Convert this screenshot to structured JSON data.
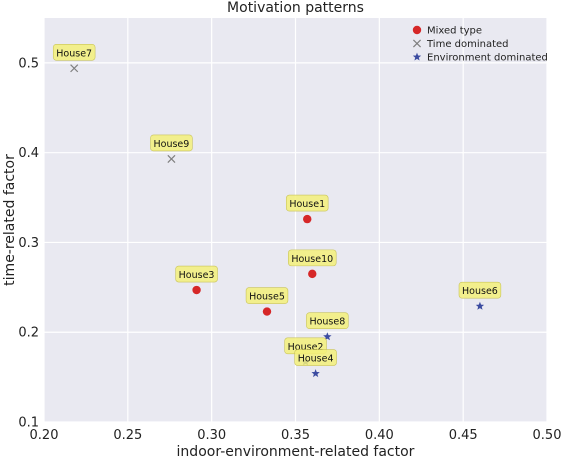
{
  "chart_data": {
    "type": "scatter",
    "title": "Motivation patterns",
    "xlabel": "indoor-environment-related factor",
    "ylabel": "time-related factor",
    "xlim": [
      0.2,
      0.5
    ],
    "ylim": [
      0.1,
      0.55
    ],
    "xticks": [
      "0.20",
      "0.25",
      "0.30",
      "0.35",
      "0.40",
      "0.45",
      "0.50"
    ],
    "yticks": [
      "0.1",
      "0.2",
      "0.3",
      "0.4",
      "0.5"
    ],
    "grid": true,
    "legend_position": "top-right",
    "colors": {
      "background": "#e9e9f1",
      "grid": "#ffffff",
      "mixed": "#d62728",
      "time": "#7f7f7f",
      "environment": "#3b4ba0",
      "label_fill": "#f3f07a",
      "label_stroke": "#c9c45a"
    },
    "series": [
      {
        "name": "Mixed type",
        "marker": "circle",
        "points": [
          {
            "label": "House1",
            "x": 0.357,
            "y": 0.326
          },
          {
            "label": "House10",
            "x": 0.36,
            "y": 0.265
          },
          {
            "label": "House3",
            "x": 0.291,
            "y": 0.247
          },
          {
            "label": "House5",
            "x": 0.333,
            "y": 0.223
          }
        ]
      },
      {
        "name": "Time dominated",
        "marker": "x",
        "points": [
          {
            "label": "House7",
            "x": 0.218,
            "y": 0.494
          },
          {
            "label": "House9",
            "x": 0.276,
            "y": 0.393
          }
        ]
      },
      {
        "name": "Environment dominated",
        "marker": "star",
        "points": [
          {
            "label": "House6",
            "x": 0.46,
            "y": 0.229
          },
          {
            "label": "House8",
            "x": 0.369,
            "y": 0.195
          },
          {
            "label": "House2",
            "x": 0.356,
            "y": 0.167
          },
          {
            "label": "House4",
            "x": 0.362,
            "y": 0.154
          }
        ]
      }
    ]
  }
}
